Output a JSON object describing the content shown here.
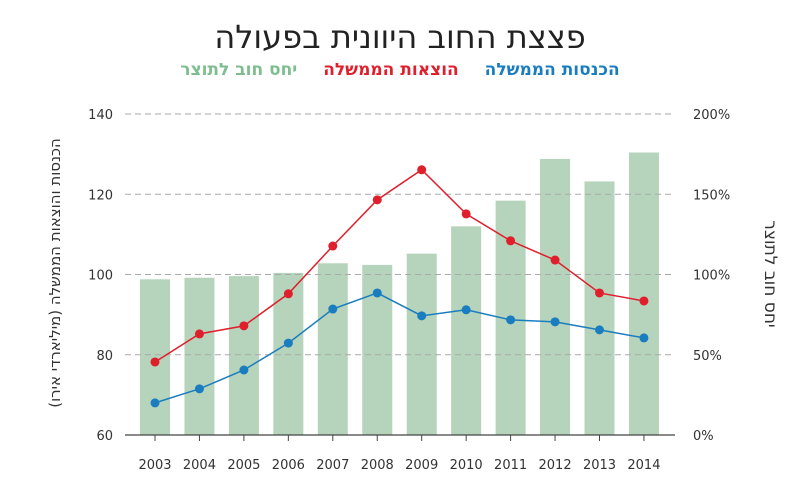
{
  "chart_data": {
    "type": "bar+line",
    "title": "פצצת החוב היוונית בפעולה",
    "categories": [
      "2003",
      "2004",
      "2005",
      "2006",
      "2007",
      "2008",
      "2009",
      "2010",
      "2011",
      "2012",
      "2013",
      "2014"
    ],
    "series": [
      {
        "name": "הכנסות הממשלה",
        "type": "line",
        "axis": "left",
        "color": "#1a7dbf",
        "values": [
          68.0,
          71.5,
          76.2,
          82.9,
          91.4,
          95.4,
          89.7,
          91.2,
          88.7,
          88.2,
          86.2,
          84.2
        ]
      },
      {
        "name": "הוצאות הממשלה",
        "type": "line",
        "axis": "left",
        "color": "#df1f2b",
        "values": [
          78.2,
          85.2,
          87.2,
          95.2,
          107.1,
          118.6,
          126.1,
          115.1,
          108.4,
          103.6,
          95.4,
          93.4
        ]
      },
      {
        "name": "יחס חוב לתוצר",
        "type": "bar",
        "axis": "right",
        "color": "#b5d4bb",
        "legend_color": "#7dbd8e",
        "values": [
          97,
          98,
          99,
          101,
          107,
          106,
          113,
          130,
          146,
          172,
          158,
          176
        ]
      }
    ],
    "ylabel": "הכנסות והוצאות הממשלה (מיליארדי אירו)",
    "y2label": "יחס חוב לתוצר",
    "ylim": [
      60,
      140
    ],
    "yticks": [
      "60",
      "80",
      "100",
      "120",
      "140"
    ],
    "y2lim": [
      0,
      200
    ],
    "y2ticks": [
      "0%",
      "50%",
      "100%",
      "150%",
      "200%"
    ],
    "grid": true,
    "legend_position": "top-center"
  }
}
